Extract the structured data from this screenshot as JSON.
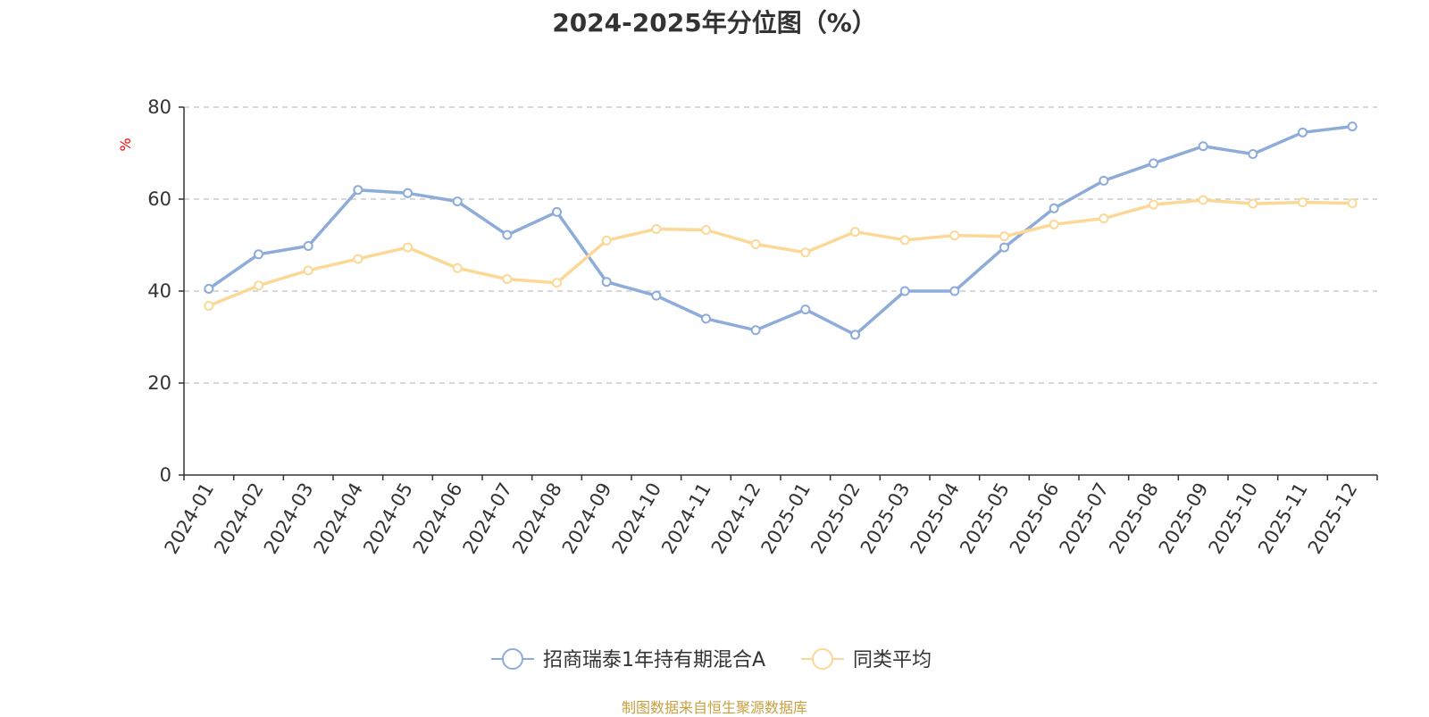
{
  "chart_data": {
    "type": "line",
    "title": "2024-2025年分位图（%）",
    "ylabel": "%",
    "xlabel": "",
    "ylim": [
      0,
      80
    ],
    "yticks": [
      0,
      20,
      40,
      60,
      80
    ],
    "grid": true,
    "legend_position": "bottom",
    "categories": [
      "2024-01",
      "2024-02",
      "2024-03",
      "2024-04",
      "2024-05",
      "2024-06",
      "2024-07",
      "2024-08",
      "2024-09",
      "2024-10",
      "2024-11",
      "2024-12",
      "2025-01",
      "2025-02",
      "2025-03",
      "2025-04",
      "2025-05",
      "2025-06",
      "2025-07",
      "2025-08",
      "2025-09",
      "2025-10",
      "2025-11",
      "2025-12"
    ],
    "series": [
      {
        "name": "招商瑞泰1年持有期混合A",
        "color": "#8eacd9",
        "values": [
          40.5,
          48.0,
          49.8,
          62.0,
          61.3,
          59.5,
          52.2,
          57.2,
          42.0,
          39.0,
          34.0,
          31.5,
          36.0,
          30.5,
          40.0,
          40.0,
          49.5,
          58.0,
          64.0,
          67.8,
          71.5,
          69.8,
          74.5,
          75.8
        ]
      },
      {
        "name": "同类平均",
        "color": "#fbd896",
        "values": [
          36.8,
          41.2,
          44.5,
          47.0,
          49.5,
          45.0,
          42.6,
          41.8,
          51.0,
          53.5,
          53.3,
          50.2,
          48.4,
          52.9,
          51.1,
          52.1,
          51.9,
          54.5,
          55.8,
          58.8,
          59.8,
          59.0,
          59.3,
          59.1
        ]
      }
    ]
  },
  "source_text": "制图数据来自恒生聚源数据库"
}
